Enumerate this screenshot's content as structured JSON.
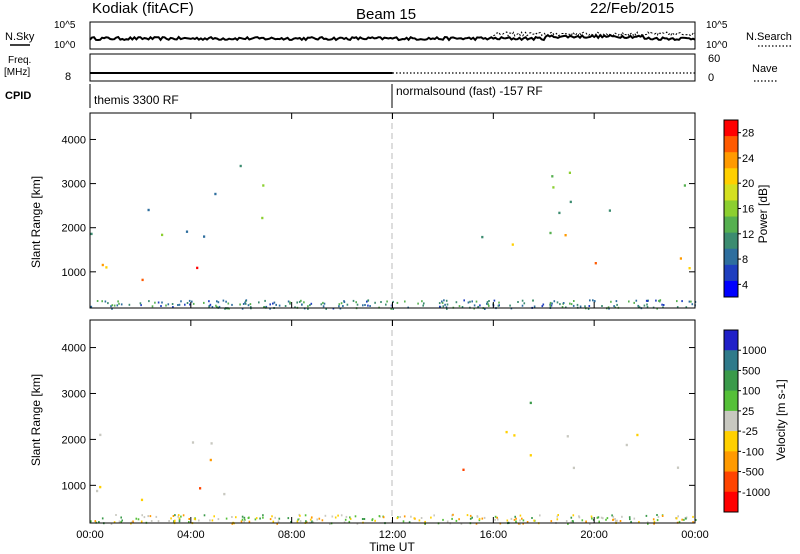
{
  "header": {
    "station": "Kodiak (fitACF)",
    "beam": "Beam 15",
    "date": "22/Feb/2015"
  },
  "status_panels": {
    "nsky_label": "N.Sky",
    "nsky_ticks": [
      "10^5",
      "10^0"
    ],
    "nsearch_label": "N.Search",
    "nsearch_ticks": [
      "10^5",
      "10^0"
    ],
    "freq_label": "Freq.",
    "freq_unit": "[MHz]",
    "freq_ticks": [
      "8"
    ],
    "nave_label": "Nave",
    "nave_ticks": [
      "60",
      "0"
    ],
    "cpid_label": "CPID",
    "cpid_programs": [
      {
        "name": "themis 3300 RF",
        "start_hour": 0
      },
      {
        "name": "normalsound (fast) -157 RF",
        "start_hour": 12
      }
    ]
  },
  "chart_data": [
    {
      "type": "heatmap",
      "parameter": "Power",
      "ylabel": "Slant Range [km]",
      "ylim": [
        180,
        4600
      ],
      "yticks": [
        "1000",
        "2000",
        "3000",
        "4000"
      ],
      "colorbar_label": "Power [dB]",
      "colorbar_ticks": [
        "4",
        "8",
        "12",
        "16",
        "20",
        "24",
        "28"
      ],
      "colorscale": [
        "#0000ff",
        "#1f3fbf",
        "#2e6e9e",
        "#3c8c70",
        "#56b050",
        "#8ccf30",
        "#d4e020",
        "#ffd000",
        "#ff9a00",
        "#ff5a00",
        "#ff0000"
      ],
      "echo_regions": [
        {
          "t_start": 0.0,
          "t_end": 5.6,
          "range_min": 700,
          "range_max": 1700,
          "power": 26
        },
        {
          "t_start": 0.0,
          "t_end": 7.0,
          "range_min": 1700,
          "range_max": 3500,
          "power": 12
        },
        {
          "t_start": 14.7,
          "t_end": 16.3,
          "range_min": 1100,
          "range_max": 2200,
          "power": 14
        },
        {
          "t_start": 16.3,
          "t_end": 24.0,
          "range_min": 900,
          "range_max": 1900,
          "power": 24
        },
        {
          "t_start": 16.8,
          "t_end": 24.0,
          "range_min": 1900,
          "range_max": 3500,
          "power": 12
        }
      ]
    },
    {
      "type": "heatmap",
      "parameter": "Velocity",
      "ylabel": "Slant Range [km]",
      "ylim": [
        180,
        4600
      ],
      "yticks": [
        "1000",
        "2000",
        "3000",
        "4000"
      ],
      "xlabel": "Time UT",
      "xlim": [
        0,
        24
      ],
      "xticks": [
        "00:00",
        "04:00",
        "08:00",
        "12:00",
        "16:00",
        "20:00",
        "00:00"
      ],
      "colorbar_label": "Velocity [m s-1]",
      "colorbar_ticks": [
        "1000",
        "500",
        "100",
        "25",
        "-25",
        "-100",
        "-500",
        "-1000"
      ],
      "colorscale": [
        "#2020c8",
        "#2f7a8a",
        "#3a9a4a",
        "#55c038",
        "#c8c8c0",
        "#ffd000",
        "#ff9a00",
        "#ff4400",
        "#ff0000"
      ],
      "echo_regions": [
        {
          "t_start": 0.0,
          "t_end": 5.5,
          "range_min": 700,
          "range_max": 2400,
          "velocity": 0
        },
        {
          "t_start": 3.0,
          "t_end": 7.0,
          "range_min": 900,
          "range_max": 1600,
          "velocity": -300
        },
        {
          "t_start": 14.7,
          "t_end": 16.3,
          "range_min": 1000,
          "range_max": 2000,
          "velocity": -300
        },
        {
          "t_start": 16.3,
          "t_end": 24.0,
          "range_min": 900,
          "range_max": 2300,
          "velocity": 0
        },
        {
          "t_start": 16.8,
          "t_end": 18.5,
          "range_min": 2600,
          "range_max": 3500,
          "velocity": 150
        }
      ]
    }
  ]
}
